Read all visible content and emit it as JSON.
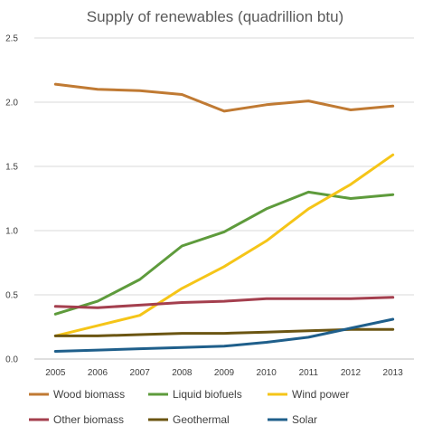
{
  "chart_data": {
    "type": "line",
    "title": "Supply of renewables (quadrillion btu)",
    "xlabel": "",
    "ylabel": "",
    "x": [
      "2005",
      "2006",
      "2007",
      "2008",
      "2009",
      "2010",
      "2011",
      "2012",
      "2013"
    ],
    "ylim": [
      0,
      2.5
    ],
    "yticks": [
      "0.0",
      "0.5",
      "1.0",
      "1.5",
      "2.0",
      "2.5"
    ],
    "grid": "horizontal",
    "legend_placement": "bottom",
    "series": [
      {
        "name": "Wood biomass",
        "color": "#c07a33",
        "values": [
          2.14,
          2.1,
          2.09,
          2.06,
          1.93,
          1.98,
          2.01,
          1.94,
          1.97
        ]
      },
      {
        "name": "Liquid biofuels",
        "color": "#5e9b3c",
        "values": [
          0.35,
          0.45,
          0.62,
          0.88,
          0.99,
          1.17,
          1.3,
          1.25,
          1.28
        ]
      },
      {
        "name": "Wind power",
        "color": "#f5c518",
        "values": [
          0.18,
          0.26,
          0.34,
          0.55,
          0.72,
          0.92,
          1.17,
          1.36,
          1.59
        ]
      },
      {
        "name": "Other biomass",
        "color": "#a43f4e",
        "values": [
          0.41,
          0.4,
          0.42,
          0.44,
          0.45,
          0.47,
          0.47,
          0.47,
          0.48
        ]
      },
      {
        "name": "Geothermal",
        "color": "#6b5512",
        "values": [
          0.18,
          0.18,
          0.19,
          0.2,
          0.2,
          0.21,
          0.22,
          0.23,
          0.23
        ]
      },
      {
        "name": "Solar",
        "color": "#1f5f8b",
        "values": [
          0.06,
          0.07,
          0.08,
          0.09,
          0.1,
          0.13,
          0.17,
          0.24,
          0.31
        ]
      }
    ]
  }
}
